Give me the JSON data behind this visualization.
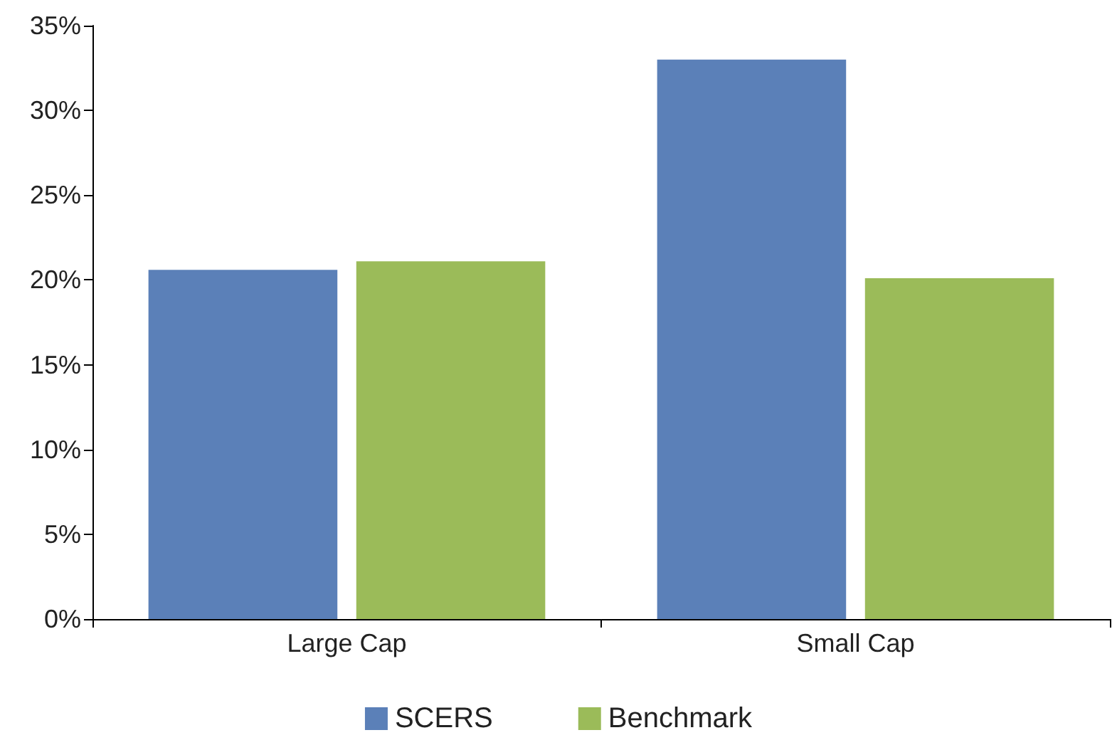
{
  "chart_data": {
    "type": "bar",
    "categories": [
      "Large Cap",
      "Small Cap"
    ],
    "series": [
      {
        "name": "SCERS",
        "color": "#5b80b8",
        "values": [
          20.6,
          33.0
        ]
      },
      {
        "name": "Benchmark",
        "color": "#9bbb59",
        "values": [
          21.1,
          20.1
        ]
      }
    ],
    "ylim": [
      0,
      35
    ],
    "yticks": [
      {
        "value": 0,
        "label": "0%"
      },
      {
        "value": 5,
        "label": "5%"
      },
      {
        "value": 10,
        "label": "10%"
      },
      {
        "value": 15,
        "label": "15%"
      },
      {
        "value": 20,
        "label": "20%"
      },
      {
        "value": 25,
        "label": "25%"
      },
      {
        "value": 30,
        "label": "30%"
      },
      {
        "value": 35,
        "label": "35%"
      }
    ],
    "grid": false,
    "legend": "bottom"
  }
}
